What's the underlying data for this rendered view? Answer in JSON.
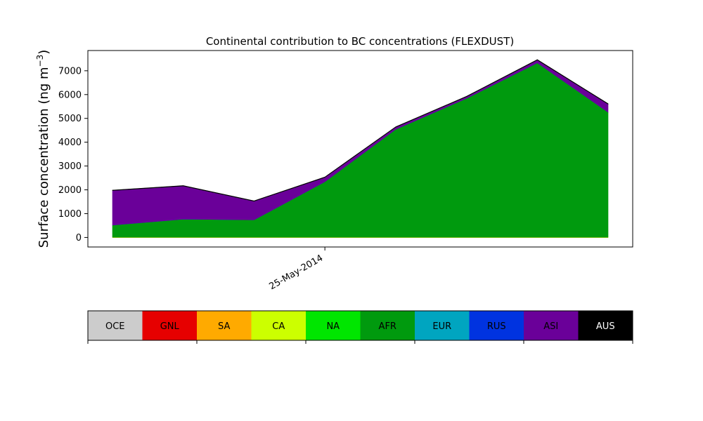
{
  "chart_data": {
    "type": "area",
    "stacked": true,
    "title": "Continental contribution to BC concentrations (FLEXDUST)",
    "ylabel": "Surface concentration (ng m",
    "ylabel_superscript": "−3",
    "ylabel_close": ")",
    "ylim": [
      -400,
      7850
    ],
    "yticks": [
      0,
      1000,
      2000,
      3000,
      4000,
      5000,
      6000,
      7000
    ],
    "xtick_label": "25-May-2014",
    "xtick_index": 3,
    "grid": false,
    "x_count": 8,
    "series": [
      {
        "name": "OCE",
        "color": "#cccccc",
        "values": [
          0,
          0,
          0,
          0,
          0,
          0,
          0,
          0
        ]
      },
      {
        "name": "GNL",
        "color": "#e60000",
        "values": [
          0,
          0,
          0,
          0,
          0,
          0,
          0,
          0
        ]
      },
      {
        "name": "SA",
        "color": "#ffaa00",
        "values": [
          0,
          0,
          0,
          0,
          0,
          0,
          0,
          0
        ]
      },
      {
        "name": "CA",
        "color": "#ccff00",
        "values": [
          10,
          10,
          10,
          10,
          10,
          10,
          10,
          10
        ]
      },
      {
        "name": "NA",
        "color": "#00e600",
        "values": [
          0,
          0,
          0,
          0,
          0,
          0,
          0,
          0
        ]
      },
      {
        "name": "AFR",
        "color": "#009a0e",
        "values": [
          510,
          760,
          730,
          2330,
          4530,
          5830,
          7320,
          5250
        ]
      },
      {
        "name": "EUR",
        "color": "#00a5c0",
        "values": [
          0,
          0,
          0,
          0,
          0,
          0,
          0,
          0
        ]
      },
      {
        "name": "RUS",
        "color": "#0033e0",
        "values": [
          0,
          0,
          0,
          0,
          0,
          0,
          0,
          0
        ]
      },
      {
        "name": "ASI",
        "color": "#6a0099",
        "values": [
          1450,
          1390,
          780,
          180,
          90,
          70,
          120,
          340
        ]
      },
      {
        "name": "AUS",
        "color": "#000000",
        "values": [
          20,
          20,
          20,
          20,
          20,
          20,
          20,
          20
        ]
      }
    ]
  }
}
